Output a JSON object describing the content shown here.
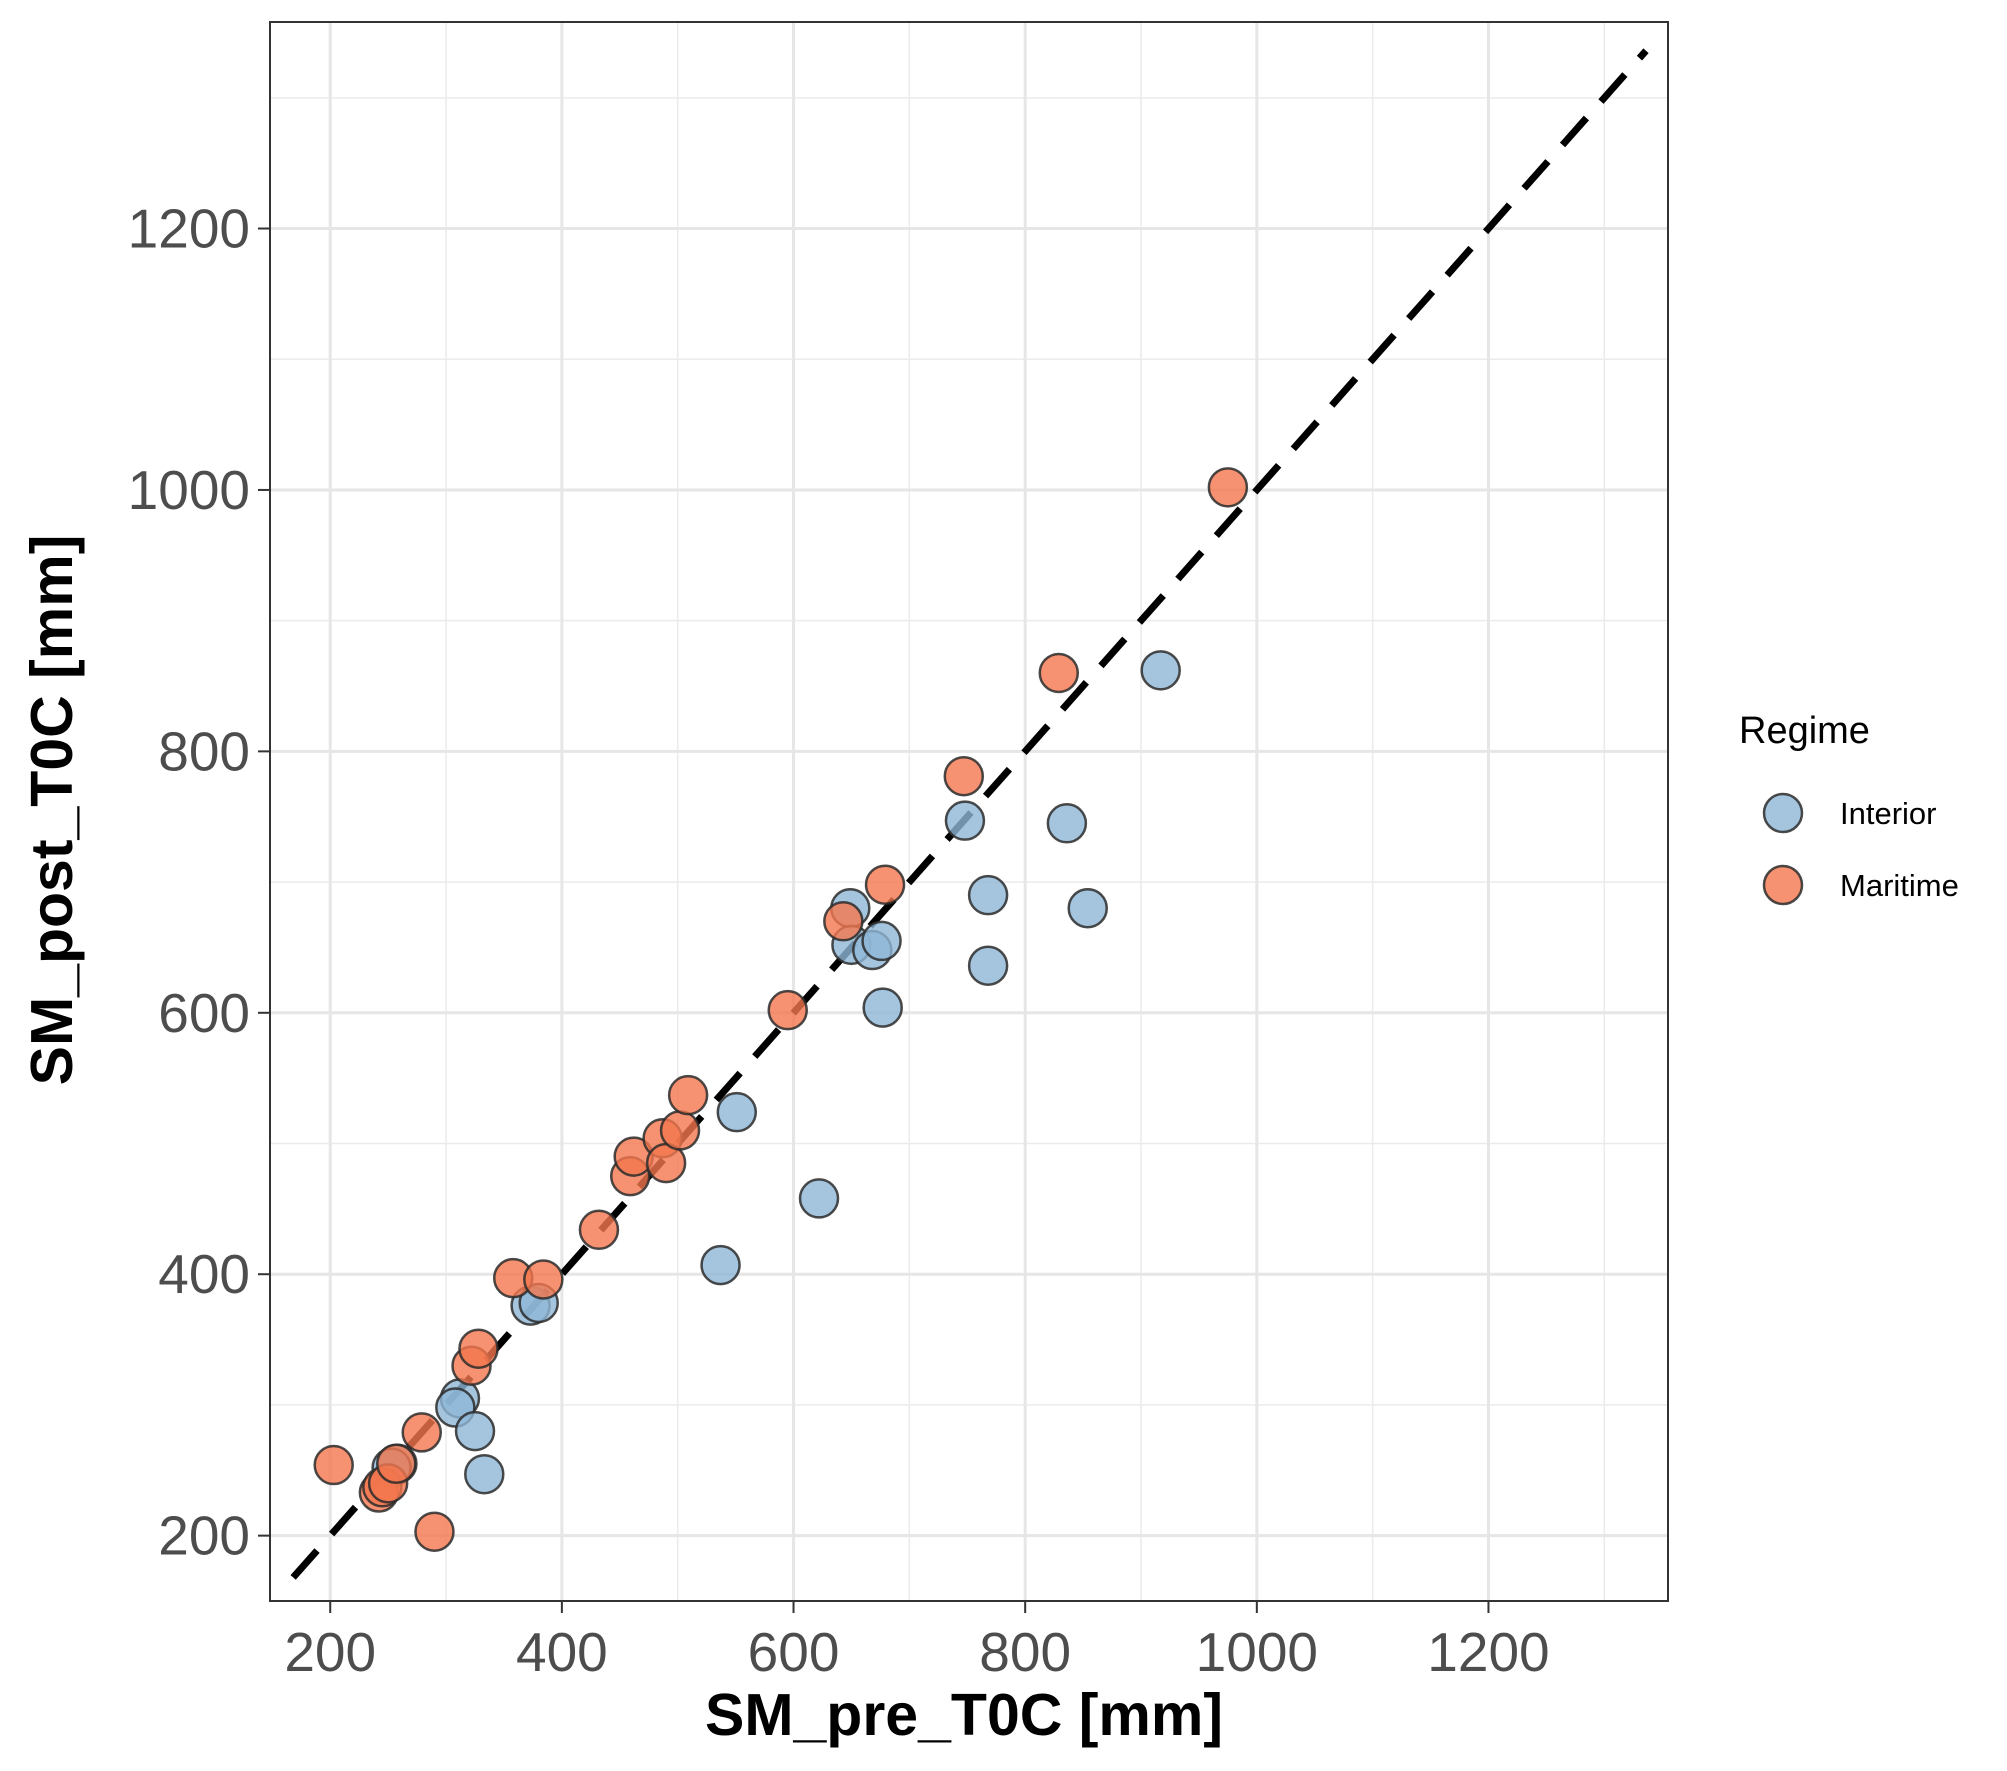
{
  "chart_data": {
    "type": "scatter",
    "title": "",
    "xlabel": "SM_pre_T0C [mm]",
    "ylabel": "SM_post_T0C [mm]",
    "xlim": [
      148,
      1355
    ],
    "ylim": [
      150,
      1358
    ],
    "xticks": [
      200,
      400,
      600,
      800,
      1000,
      1200
    ],
    "yticks": [
      200,
      400,
      600,
      800,
      1000,
      1200
    ],
    "xtick_labels": [
      "200",
      "400",
      "600",
      "800",
      "1000",
      "1200"
    ],
    "ytick_labels": [
      "200",
      "400",
      "600",
      "800",
      "1000",
      "1200"
    ],
    "grid": true,
    "reference_line": {
      "style": "dashed",
      "color": "#000000",
      "x": [
        168,
        1336
      ],
      "y": [
        168,
        1336
      ]
    },
    "legend": {
      "title": "Regime",
      "position": "right"
    },
    "series": [
      {
        "name": "Interior",
        "color": "#8fb7d7",
        "points": [
          [
            258,
            255
          ],
          [
            253,
            252
          ],
          [
            312,
            305
          ],
          [
            308,
            298
          ],
          [
            325,
            280
          ],
          [
            333,
            247
          ],
          [
            373,
            376
          ],
          [
            380,
            378
          ],
          [
            537,
            407
          ],
          [
            551,
            524
          ],
          [
            622,
            458
          ],
          [
            649,
            680
          ],
          [
            650,
            652
          ],
          [
            668,
            648
          ],
          [
            676,
            655
          ],
          [
            677,
            604
          ],
          [
            748,
            747
          ],
          [
            768,
            690
          ],
          [
            768,
            636
          ],
          [
            836,
            745
          ],
          [
            854,
            680
          ],
          [
            917,
            862
          ]
        ]
      },
      {
        "name": "Maritime",
        "color": "#f4774e",
        "points": [
          [
            203,
            254
          ],
          [
            242,
            233
          ],
          [
            245,
            237
          ],
          [
            250,
            240
          ],
          [
            257,
            255
          ],
          [
            279,
            279
          ],
          [
            290,
            203
          ],
          [
            322,
            330
          ],
          [
            328,
            343
          ],
          [
            358,
            397
          ],
          [
            384,
            396
          ],
          [
            432,
            434
          ],
          [
            459,
            475
          ],
          [
            462,
            490
          ],
          [
            487,
            504
          ],
          [
            490,
            485
          ],
          [
            502,
            510
          ],
          [
            509,
            537
          ],
          [
            595,
            602
          ],
          [
            643,
            670
          ],
          [
            679,
            698
          ],
          [
            747,
            781
          ],
          [
            829,
            860
          ],
          [
            975,
            1002
          ]
        ]
      }
    ]
  }
}
